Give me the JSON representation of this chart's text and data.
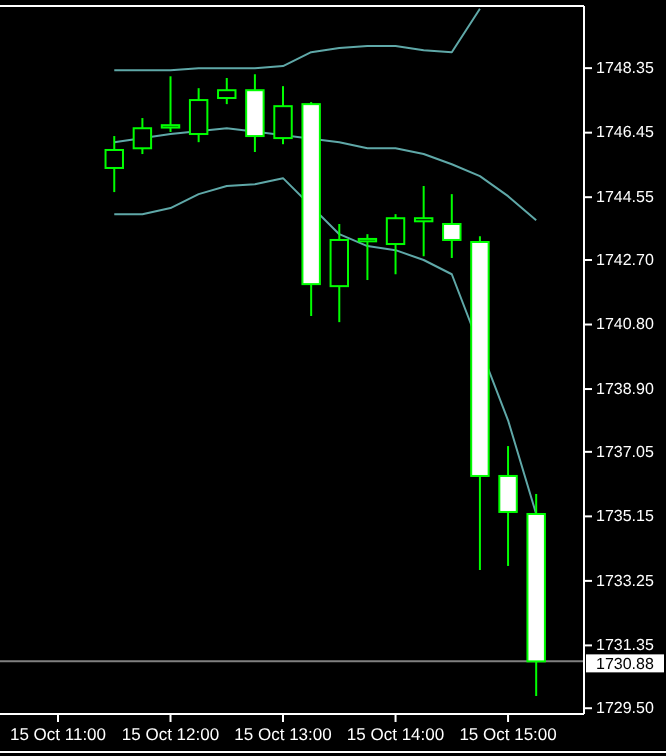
{
  "chart_data": {
    "type": "candlestick",
    "color": "#00ff00",
    "categories": [
      "15 Oct 11:00",
      null,
      null,
      null,
      "15 Oct 12:00",
      null,
      null,
      null,
      "15 Oct 13:00",
      null,
      null,
      null,
      "15 Oct 14:00",
      null,
      null,
      null,
      "15 Oct 15:00",
      null
    ],
    "ohlc": [
      null,
      null,
      [
        1745.41,
        1746.35,
        1744.7,
        1745.94
      ],
      [
        1745.99,
        1746.88,
        1745.82,
        1746.58
      ],
      [
        1746.6,
        1748.11,
        1746.47,
        1746.67
      ],
      [
        1746.41,
        1747.76,
        1746.17,
        1747.41
      ],
      [
        1747.47,
        1748.06,
        1747.29,
        1747.7
      ],
      [
        1747.7,
        1748.17,
        1745.88,
        1746.35
      ],
      [
        1746.29,
        1747.82,
        1746.11,
        1747.23
      ],
      [
        1747.29,
        1747.35,
        1741.05,
        1741.99
      ],
      [
        1741.93,
        1743.76,
        1740.87,
        1743.29
      ],
      [
        1743.25,
        1743.46,
        1742.11,
        1743.32
      ],
      [
        1743.17,
        1744.05,
        1742.28,
        1743.93
      ],
      [
        1743.84,
        1744.88,
        1742.81,
        1743.93
      ],
      [
        1743.76,
        1744.64,
        1742.76,
        1743.29
      ],
      [
        1743.23,
        1743.4,
        1733.57,
        1736.34
      ],
      [
        1736.34,
        1737.22,
        1733.69,
        1735.28
      ],
      [
        1735.22,
        1735.81,
        1729.86,
        1730.88
      ]
    ],
    "series": [
      {
        "type": "line",
        "color": "#5fa8a8",
        "values": [
          null,
          null,
          1748.29,
          1748.29,
          1748.29,
          1748.35,
          1748.35,
          1748.35,
          1748.41,
          1748.82,
          1748.94,
          1749.0,
          1749.0,
          1748.88,
          1748.82,
          1750.1,
          null,
          null
        ]
      },
      {
        "type": "line",
        "color": "#5fa8a8",
        "values": [
          null,
          null,
          1746.17,
          null,
          1746.41,
          null,
          1746.58,
          null,
          null,
          null,
          1746.17,
          1745.99,
          1745.99,
          1745.82,
          1745.52,
          1745.17,
          1744.58,
          1743.87
        ]
      },
      {
        "type": "line",
        "color": "#5fa8a8",
        "values": [
          null,
          null,
          1744.05,
          1744.05,
          1744.23,
          1744.64,
          1744.88,
          1744.93,
          1745.11,
          null,
          1743.46,
          1743.11,
          1742.99,
          1742.7,
          1742.28,
          null,
          1737.98,
          1735.22
        ]
      }
    ],
    "ylim": [
      1729.33,
      1750.18
    ],
    "yticks": [
      1748.35,
      1746.45,
      1744.55,
      {
        "value": 1742.7,
        "label": "1742.70"
      },
      {
        "value": 1740.8,
        "label": "1740.80"
      },
      {
        "value": 1738.9,
        "label": "1738.90"
      },
      1737.05,
      1735.15,
      1733.25,
      1731.35,
      {
        "value": 1729.5,
        "label": "1729.50"
      }
    ],
    "ref_lines": [
      {
        "axis": "y",
        "value": 1730.88,
        "label": "1730.88",
        "color": "#808080"
      }
    ],
    "grid": false
  }
}
